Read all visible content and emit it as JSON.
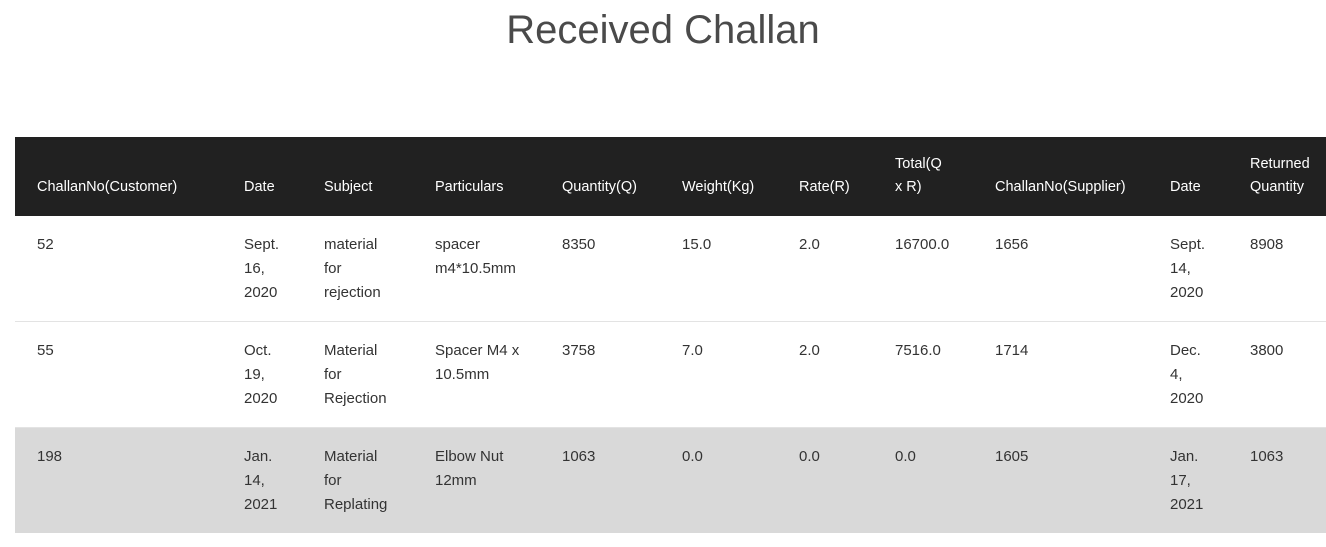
{
  "page": {
    "title": "Received Challan"
  },
  "table": {
    "headers": [
      "ChallanNo(Customer)",
      "Date",
      "Subject",
      "Particulars",
      "Quantity(Q)",
      "Weight(Kg)",
      "Rate(R)",
      "Total(Q x R)",
      "ChallanNo(Supplier)",
      "Date",
      "Returned Quantity"
    ],
    "rows": [
      {
        "challan_no_customer": "52",
        "date": "Sept. 16, 2020",
        "subject": "material for rejection",
        "particulars": "spacer m4*10.5mm",
        "quantity": "8350",
        "weight": "15.0",
        "rate": "2.0",
        "total": "16700.0",
        "challan_no_supplier": "1656",
        "supplier_date": "Sept. 14, 2020",
        "returned_quantity": "8908"
      },
      {
        "challan_no_customer": "55",
        "date": "Oct. 19, 2020",
        "subject": "Material for Rejection",
        "particulars": "Spacer M4 x 10.5mm",
        "quantity": "3758",
        "weight": "7.0",
        "rate": "2.0",
        "total": "7516.0",
        "challan_no_supplier": "1714",
        "supplier_date": "Dec. 4, 2020",
        "returned_quantity": "3800"
      },
      {
        "challan_no_customer": "198",
        "date": "Jan. 14, 2021",
        "subject": "Material for Replating",
        "particulars": "Elbow Nut 12mm",
        "quantity": "1063",
        "weight": "0.0",
        "rate": "0.0",
        "total": "0.0",
        "challan_no_supplier": "1605",
        "supplier_date": "Jan. 17, 2021",
        "returned_quantity": "1063"
      }
    ]
  },
  "colors": {
    "header_bg": "#212121",
    "header_text": "#ffffff",
    "highlight_row_bg": "#d9d9d9",
    "title_text": "#4a4a4a"
  }
}
